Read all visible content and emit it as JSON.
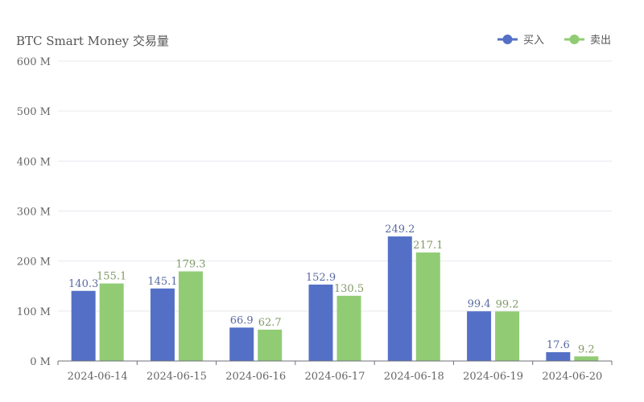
{
  "chart_data": {
    "type": "bar",
    "title": "BTC Smart Money 交易量",
    "categories": [
      "2024-06-14",
      "2024-06-15",
      "2024-06-16",
      "2024-06-17",
      "2024-06-18",
      "2024-06-19",
      "2024-06-20"
    ],
    "series": [
      {
        "name": "买入",
        "color": "#5470c6",
        "label_color": "#5a6aa0",
        "values": [
          140.3,
          145.1,
          66.9,
          152.9,
          249.2,
          99.4,
          17.6
        ]
      },
      {
        "name": "卖出",
        "color": "#91cc75",
        "label_color": "#7f9a66",
        "values": [
          155.1,
          179.3,
          62.7,
          130.5,
          217.1,
          99.2,
          9.2
        ]
      }
    ],
    "yticks": [
      "0 M",
      "100 M",
      "200 M",
      "300 M",
      "400 M",
      "500 M",
      "600 M"
    ],
    "ylim": [
      0,
      600
    ],
    "legend_position": "top-right",
    "grid": true
  }
}
